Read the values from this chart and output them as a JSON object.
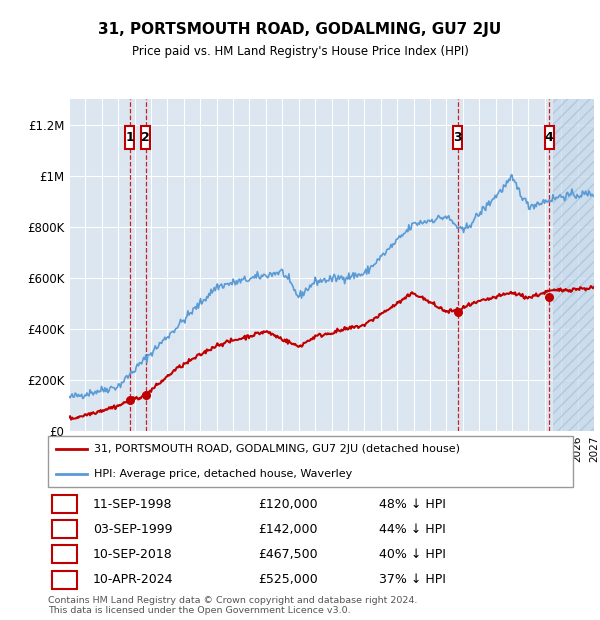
{
  "title": "31, PORTSMOUTH ROAD, GODALMING, GU7 2JU",
  "subtitle": "Price paid vs. HM Land Registry's House Price Index (HPI)",
  "ylim": [
    0,
    1300000
  ],
  "yticks": [
    0,
    200000,
    400000,
    600000,
    800000,
    1000000,
    1200000
  ],
  "ytick_labels": [
    "£0",
    "£200K",
    "£400K",
    "£600K",
    "£800K",
    "£1M",
    "£1.2M"
  ],
  "hpi_color": "#5b9bd5",
  "price_color": "#c00000",
  "background_color": "#dce6f1",
  "grid_color": "#ffffff",
  "sale_points": [
    {
      "num": 1,
      "date_str": "11-SEP-1998",
      "year": 1998.69,
      "price": 120000,
      "label": "48% ↓ HPI"
    },
    {
      "num": 2,
      "date_str": "03-SEP-1999",
      "year": 1999.67,
      "price": 142000,
      "label": "44% ↓ HPI"
    },
    {
      "num": 3,
      "date_str": "10-SEP-2018",
      "year": 2018.69,
      "price": 467500,
      "label": "40% ↓ HPI"
    },
    {
      "num": 4,
      "date_str": "10-APR-2024",
      "year": 2024.27,
      "price": 525000,
      "label": "37% ↓ HPI"
    }
  ],
  "legend_line1": "31, PORTSMOUTH ROAD, GODALMING, GU7 2JU (detached house)",
  "legend_line2": "HPI: Average price, detached house, Waverley",
  "footnote": "Contains HM Land Registry data © Crown copyright and database right 2024.\nThis data is licensed under the Open Government Licence v3.0.",
  "xmin": 1995,
  "xmax": 2027
}
